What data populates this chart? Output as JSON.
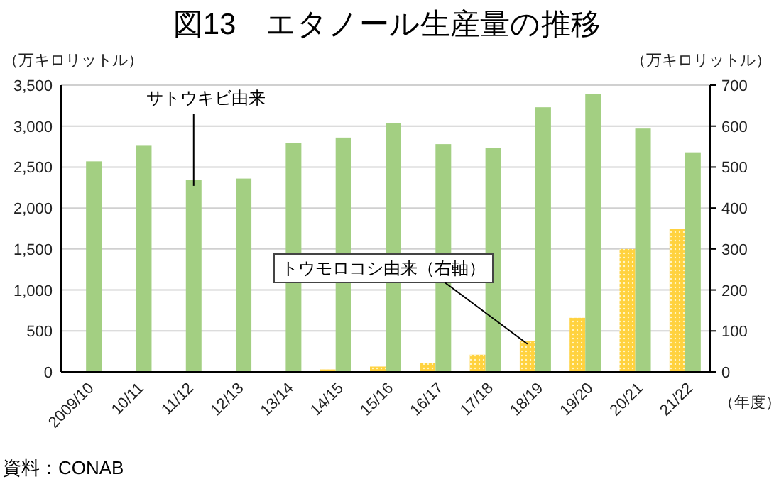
{
  "chart_data": {
    "type": "bar",
    "title": "図13　エタノール生産量の推移",
    "ylabel": "（万キロリットル）",
    "y2label": "（万キロリットル）",
    "xlabel": "（年度）",
    "categories": [
      "2009/10",
      "10/11",
      "11/12",
      "12/13",
      "13/14",
      "14/15",
      "15/16",
      "16/17",
      "17/18",
      "18/19",
      "19/20",
      "20/21",
      "21/22"
    ],
    "series": [
      {
        "name": "トウモロコシ由来（右軸）",
        "color": "#ffd23f",
        "axis": "y2",
        "values": [
          null,
          null,
          null,
          null,
          null,
          6,
          13,
          21,
          42,
          75,
          132,
          300,
          350
        ]
      },
      {
        "name": "サトウキビ由来",
        "color": "#a3cf82",
        "values": [
          2570,
          2760,
          2340,
          2360,
          2790,
          2860,
          3040,
          2780,
          2730,
          3230,
          3390,
          2970,
          2680
        ]
      }
    ],
    "ylim": [
      0,
      3500
    ],
    "yticks": [
      {
        "value": 0,
        "label": "0"
      },
      {
        "value": 500,
        "label": "500"
      },
      {
        "value": 1000,
        "label": "1,000"
      },
      {
        "value": 1500,
        "label": "1,500"
      },
      {
        "value": 2000,
        "label": "2,000"
      },
      {
        "value": 2500,
        "label": "2,500"
      },
      {
        "value": 3000,
        "label": "3,000"
      },
      {
        "value": 3500,
        "label": "3,500"
      }
    ],
    "y2lim": [
      0,
      700
    ],
    "y2ticks": [
      0,
      100,
      200,
      300,
      400,
      500,
      600,
      700
    ],
    "grid": "y",
    "annotations": [
      "資料：CONAB"
    ]
  }
}
